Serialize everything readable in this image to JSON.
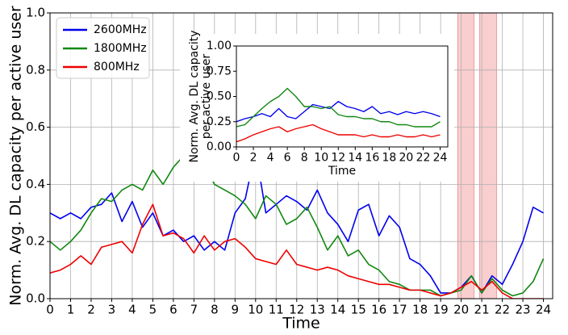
{
  "chart_data": [
    {
      "type": "line",
      "xlabel": "Time",
      "ylabel": "Norm. Avg. DL capacity per active user",
      "xlim": [
        0,
        24.45
      ],
      "ylim": [
        0,
        1
      ],
      "xticks": [
        0,
        1,
        2,
        3,
        4,
        5,
        6,
        7,
        8,
        9,
        10,
        11,
        12,
        13,
        14,
        15,
        16,
        17,
        18,
        19,
        20,
        21,
        22,
        23,
        24
      ],
      "yticks": [
        {
          "value": 0,
          "label": "0.0"
        },
        0.2,
        0.4,
        0.6,
        0.8,
        {
          "value": 1,
          "label": "1.0"
        }
      ],
      "grid": true,
      "legend": "upper left",
      "shaded_regions": [
        [
          19.83,
          20.62
        ],
        [
          20.9,
          21.72
        ]
      ],
      "shade_color": "#f4a6a6",
      "x": [
        0,
        0.5,
        1,
        1.5,
        2,
        2.5,
        3,
        3.5,
        4,
        4.5,
        5,
        5.5,
        6,
        6.5,
        7,
        7.5,
        8,
        8.5,
        9,
        9.5,
        10,
        10.5,
        11,
        11.5,
        12,
        12.5,
        13,
        13.5,
        14,
        14.5,
        15,
        15.5,
        16,
        16.5,
        17,
        17.5,
        18,
        18.5,
        19,
        19.5,
        20,
        20.5,
        21,
        21.5,
        22,
        22.5,
        23,
        23.5,
        24
      ],
      "series": [
        {
          "name": "2600MHz",
          "color": "#0000ee",
          "values": [
            0.3,
            0.28,
            0.3,
            0.28,
            0.32,
            0.33,
            0.37,
            0.27,
            0.34,
            0.25,
            0.3,
            0.22,
            0.24,
            0.2,
            0.22,
            0.17,
            0.2,
            0.17,
            0.3,
            0.35,
            0.52,
            0.3,
            0.33,
            0.36,
            0.34,
            0.31,
            0.38,
            0.3,
            0.26,
            0.2,
            0.31,
            0.33,
            0.22,
            0.29,
            0.25,
            0.14,
            0.12,
            0.08,
            0.02,
            0.02,
            0.04,
            0.08,
            0.02,
            0.08,
            0.05,
            0.12,
            0.2,
            0.32,
            0.3
          ]
        },
        {
          "name": "1800MHz",
          "color": "#118811",
          "values": [
            0.2,
            0.17,
            0.2,
            0.24,
            0.3,
            0.35,
            0.34,
            0.38,
            0.4,
            0.38,
            0.45,
            0.4,
            0.46,
            0.5,
            0.55,
            0.47,
            0.4,
            0.38,
            0.36,
            0.33,
            0.28,
            0.36,
            0.33,
            0.26,
            0.28,
            0.32,
            0.25,
            0.17,
            0.22,
            0.15,
            0.17,
            0.12,
            0.1,
            0.06,
            0.05,
            0.03,
            0.03,
            0.03,
            0.01,
            0.02,
            0.03,
            0.08,
            0.02,
            0.07,
            0.03,
            0.01,
            0.02,
            0.06,
            0.14
          ]
        },
        {
          "name": "800MHz",
          "color": "#ee0000",
          "values": [
            0.09,
            0.1,
            0.12,
            0.15,
            0.12,
            0.18,
            0.19,
            0.2,
            0.16,
            0.26,
            0.33,
            0.22,
            0.23,
            0.21,
            0.16,
            0.22,
            0.17,
            0.2,
            0.21,
            0.18,
            0.14,
            0.13,
            0.12,
            0.17,
            0.12,
            0.11,
            0.1,
            0.11,
            0.1,
            0.08,
            0.07,
            0.06,
            0.05,
            0.05,
            0.04,
            0.03,
            0.03,
            0.02,
            0.01,
            0.02,
            0.04,
            0.06,
            0.03,
            0.06,
            0.02,
            0,
            0,
            0,
            0
          ]
        }
      ]
    },
    {
      "type": "line",
      "xlabel": "Time",
      "ylabel_lines": [
        "Norm. Avg. DL capacity",
        "per active user"
      ],
      "xlim": [
        0,
        24.9
      ],
      "ylim": [
        0,
        1
      ],
      "xticks": [
        0,
        2,
        4,
        6,
        8,
        10,
        12,
        14,
        16,
        18,
        20,
        22,
        24
      ],
      "yticks": [
        {
          "value": 0,
          "label": "0.00"
        },
        0.25,
        {
          "value": 0.5,
          "label": "0.50"
        },
        0.75,
        {
          "value": 1,
          "label": "1.00"
        }
      ],
      "grid": false,
      "x": [
        0,
        1,
        2,
        3,
        4,
        5,
        6,
        7,
        8,
        9,
        10,
        11,
        12,
        13,
        14,
        15,
        16,
        17,
        18,
        19,
        20,
        21,
        22,
        23,
        24
      ],
      "series": [
        {
          "name": "2600MHz",
          "color": "#0000ee",
          "values": [
            0.25,
            0.28,
            0.3,
            0.33,
            0.3,
            0.38,
            0.3,
            0.28,
            0.35,
            0.42,
            0.4,
            0.38,
            0.45,
            0.4,
            0.38,
            0.35,
            0.4,
            0.33,
            0.35,
            0.32,
            0.35,
            0.33,
            0.35,
            0.33,
            0.3
          ]
        },
        {
          "name": "1800MHz",
          "color": "#118811",
          "values": [
            0.2,
            0.22,
            0.3,
            0.38,
            0.45,
            0.5,
            0.58,
            0.5,
            0.4,
            0.4,
            0.38,
            0.4,
            0.32,
            0.3,
            0.3,
            0.28,
            0.28,
            0.25,
            0.25,
            0.22,
            0.22,
            0.2,
            0.2,
            0.2,
            0.25
          ]
        },
        {
          "name": "800MHz",
          "color": "#ee0000",
          "values": [
            0.05,
            0.08,
            0.12,
            0.15,
            0.18,
            0.2,
            0.15,
            0.18,
            0.2,
            0.22,
            0.18,
            0.15,
            0.12,
            0.12,
            0.12,
            0.1,
            0.12,
            0.1,
            0.1,
            0.12,
            0.1,
            0.1,
            0.12,
            0.1,
            0.12
          ]
        }
      ]
    }
  ]
}
